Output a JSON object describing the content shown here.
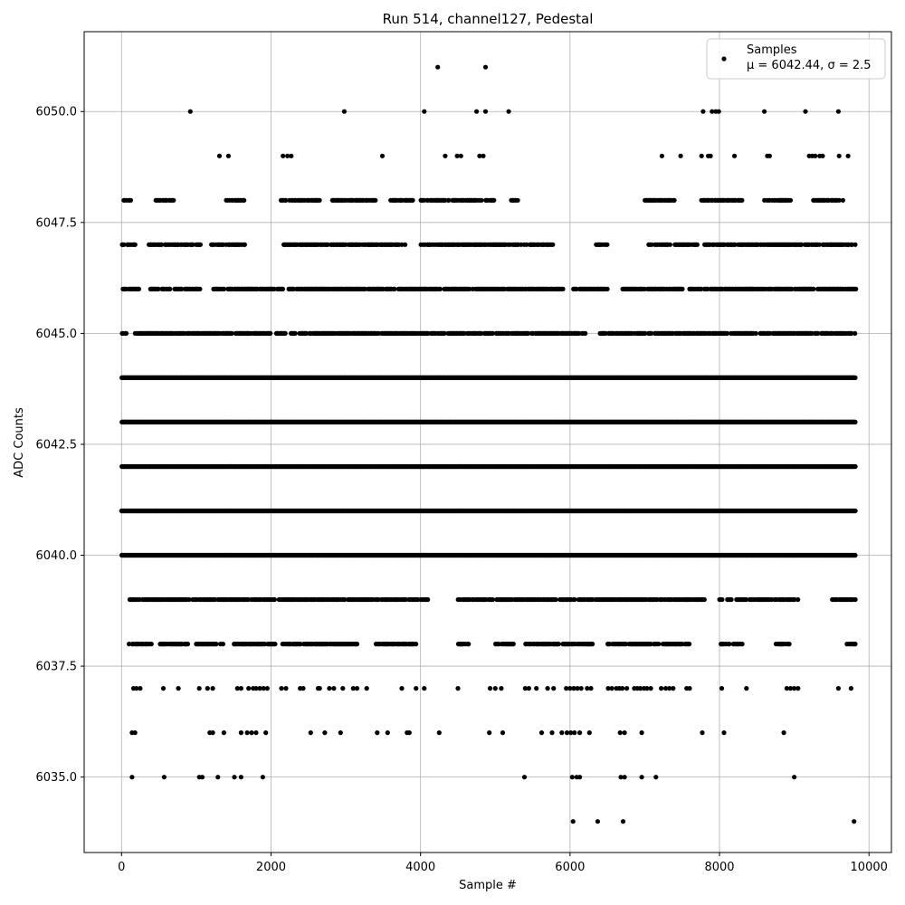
{
  "chart_data": {
    "type": "scatter",
    "title": "Run 514, channel127, Pedestal",
    "xlabel": "Sample #",
    "ylabel": "ADC Counts",
    "xlim": [
      -500,
      10300
    ],
    "ylim": [
      6033.3,
      6051.8
    ],
    "xticks": [
      0,
      2000,
      4000,
      6000,
      8000,
      10000
    ],
    "yticks": [
      6035.0,
      6037.5,
      6040.0,
      6042.5,
      6045.0,
      6047.5,
      6050.0
    ],
    "xtick_labels": [
      "0",
      "2000",
      "4000",
      "6000",
      "8000",
      "10000"
    ],
    "ytick_labels": [
      "6035.0",
      "6037.5",
      "6040.0",
      "6042.5",
      "6045.0",
      "6047.5",
      "6050.0"
    ],
    "grid": true,
    "legend_position": "top-right",
    "marker_color": "#000000",
    "series": [
      {
        "name": "Samples",
        "stats_label": "μ = 6042.44, σ = 2.5",
        "n_samples": 9820,
        "dense_levels": [
          {
            "y": 6040,
            "x": [
              0,
              9820
            ]
          },
          {
            "y": 6041,
            "x": [
              0,
              9820
            ]
          },
          {
            "y": 6042,
            "x": [
              0,
              9820
            ]
          },
          {
            "y": 6043,
            "x": [
              0,
              9820
            ]
          },
          {
            "y": 6044,
            "x": [
              0,
              9820
            ]
          }
        ],
        "clusters": [
          {
            "y": 6045,
            "x": [
              [
                0,
                60
              ],
              [
                180,
                2000
              ],
              [
                2050,
                6000
              ],
              [
                6000,
                6200
              ],
              [
                6400,
                9820
              ]
            ]
          },
          {
            "y": 6046,
            "x": [
              [
                0,
                250
              ],
              [
                380,
                1050
              ],
              [
                1200,
                2300
              ],
              [
                2300,
                3650
              ],
              [
                3700,
                5900
              ],
              [
                6000,
                6500
              ],
              [
                6700,
                7500
              ],
              [
                7600,
                8400
              ],
              [
                8400,
                9820
              ]
            ]
          },
          {
            "y": 6047,
            "x": [
              [
                0,
                200
              ],
              [
                350,
                1050
              ],
              [
                1200,
                1650
              ],
              [
                2150,
                3300
              ],
              [
                3300,
                3800
              ],
              [
                4000,
                5800
              ],
              [
                6350,
                6500
              ],
              [
                7050,
                7700
              ],
              [
                7800,
                8900
              ],
              [
                8900,
                9820
              ]
            ]
          },
          {
            "y": 6039,
            "x": [
              [
                100,
                900
              ],
              [
                950,
                2050
              ],
              [
                2100,
                4100
              ],
              [
                4500,
                5900
              ],
              [
                5900,
                7800
              ],
              [
                8000,
                8350
              ],
              [
                8400,
                9050
              ],
              [
                9500,
                9820
              ]
            ]
          },
          {
            "y": 6048,
            "x": [
              [
                20,
                120
              ],
              [
                450,
                700
              ],
              [
                1400,
                1650
              ],
              [
                2100,
                2650
              ],
              [
                2800,
                3400
              ],
              [
                3600,
                3900
              ],
              [
                4000,
                5000
              ],
              [
                5200,
                5300
              ],
              [
                7000,
                7400
              ],
              [
                7750,
                8300
              ],
              [
                8600,
                8950
              ],
              [
                9250,
                9650
              ]
            ]
          },
          {
            "y": 6038,
            "x": [
              [
                100,
                400
              ],
              [
                500,
                900
              ],
              [
                1000,
                1350
              ],
              [
                1500,
                2050
              ],
              [
                2150,
                3150
              ],
              [
                3400,
                3950
              ],
              [
                4500,
                4650
              ],
              [
                5000,
                5250
              ],
              [
                5400,
                6000
              ],
              [
                6000,
                6300
              ],
              [
                6500,
                7600
              ],
              [
                8000,
                8300
              ],
              [
                8750,
                8950
              ],
              [
                9700,
                9820
              ]
            ]
          }
        ],
        "points": [
          [
            920,
            6050
          ],
          [
            2980,
            6050
          ],
          [
            4050,
            6050
          ],
          [
            4750,
            6050
          ],
          [
            4870,
            6050
          ],
          [
            5180,
            6050
          ],
          [
            7780,
            6050
          ],
          [
            7900,
            6050
          ],
          [
            7950,
            6050
          ],
          [
            7990,
            6050
          ],
          [
            8600,
            6050
          ],
          [
            9150,
            6050
          ],
          [
            9590,
            6050
          ],
          [
            4230,
            6051
          ],
          [
            4870,
            6051
          ],
          [
            1310,
            6049
          ],
          [
            1430,
            6049
          ],
          [
            2160,
            6049
          ],
          [
            2220,
            6049
          ],
          [
            2270,
            6049
          ],
          [
            3490,
            6049
          ],
          [
            4330,
            6049
          ],
          [
            4490,
            6049
          ],
          [
            4540,
            6049
          ],
          [
            4790,
            6049
          ],
          [
            4840,
            6049
          ],
          [
            7230,
            6049
          ],
          [
            7480,
            6049
          ],
          [
            7760,
            6049
          ],
          [
            7850,
            6049
          ],
          [
            7880,
            6049
          ],
          [
            8200,
            6049
          ],
          [
            8640,
            6049
          ],
          [
            8670,
            6049
          ],
          [
            9200,
            6049
          ],
          [
            9240,
            6049
          ],
          [
            9280,
            6049
          ],
          [
            9340,
            6049
          ],
          [
            9380,
            6049
          ],
          [
            9600,
            6049
          ],
          [
            9720,
            6049
          ],
          [
            160,
            6037
          ],
          [
            200,
            6037
          ],
          [
            250,
            6037
          ],
          [
            560,
            6037
          ],
          [
            760,
            6037
          ],
          [
            1040,
            6037
          ],
          [
            1150,
            6037
          ],
          [
            1220,
            6037
          ],
          [
            1550,
            6037
          ],
          [
            1600,
            6037
          ],
          [
            1700,
            6037
          ],
          [
            1760,
            6037
          ],
          [
            1800,
            6037
          ],
          [
            1850,
            6037
          ],
          [
            1900,
            6037
          ],
          [
            1950,
            6037
          ],
          [
            2140,
            6037
          ],
          [
            2200,
            6037
          ],
          [
            2390,
            6037
          ],
          [
            2430,
            6037
          ],
          [
            2630,
            6037
          ],
          [
            2650,
            6037
          ],
          [
            2780,
            6037
          ],
          [
            2840,
            6037
          ],
          [
            2960,
            6037
          ],
          [
            3100,
            6037
          ],
          [
            3150,
            6037
          ],
          [
            3280,
            6037
          ],
          [
            3750,
            6037
          ],
          [
            3940,
            6037
          ],
          [
            4050,
            6037
          ],
          [
            4500,
            6037
          ],
          [
            4930,
            6037
          ],
          [
            5000,
            6037
          ],
          [
            5080,
            6037
          ],
          [
            5400,
            6037
          ],
          [
            5450,
            6037
          ],
          [
            5550,
            6037
          ],
          [
            5700,
            6037
          ],
          [
            5780,
            6037
          ],
          [
            5950,
            6037
          ],
          [
            6000,
            6037
          ],
          [
            6050,
            6037
          ],
          [
            6100,
            6037
          ],
          [
            6150,
            6037
          ],
          [
            6230,
            6037
          ],
          [
            6280,
            6037
          ],
          [
            6510,
            6037
          ],
          [
            6560,
            6037
          ],
          [
            6620,
            6037
          ],
          [
            6660,
            6037
          ],
          [
            6700,
            6037
          ],
          [
            6760,
            6037
          ],
          [
            6860,
            6037
          ],
          [
            6900,
            6037
          ],
          [
            6940,
            6037
          ],
          [
            6990,
            6037
          ],
          [
            7030,
            6037
          ],
          [
            7080,
            6037
          ],
          [
            7220,
            6037
          ],
          [
            7280,
            6037
          ],
          [
            7330,
            6037
          ],
          [
            7380,
            6037
          ],
          [
            7560,
            6037
          ],
          [
            7600,
            6037
          ],
          [
            8030,
            6037
          ],
          [
            8360,
            6037
          ],
          [
            8900,
            6037
          ],
          [
            8950,
            6037
          ],
          [
            9000,
            6037
          ],
          [
            9050,
            6037
          ],
          [
            9590,
            6037
          ],
          [
            9760,
            6037
          ],
          [
            140,
            6036
          ],
          [
            180,
            6036
          ],
          [
            1180,
            6036
          ],
          [
            1220,
            6036
          ],
          [
            1370,
            6036
          ],
          [
            1600,
            6036
          ],
          [
            1680,
            6036
          ],
          [
            1740,
            6036
          ],
          [
            1800,
            6036
          ],
          [
            1930,
            6036
          ],
          [
            2530,
            6036
          ],
          [
            2720,
            6036
          ],
          [
            2930,
            6036
          ],
          [
            3420,
            6036
          ],
          [
            3560,
            6036
          ],
          [
            3820,
            6036
          ],
          [
            3850,
            6036
          ],
          [
            4250,
            6036
          ],
          [
            4920,
            6036
          ],
          [
            5100,
            6036
          ],
          [
            5620,
            6036
          ],
          [
            5760,
            6036
          ],
          [
            5890,
            6036
          ],
          [
            5960,
            6036
          ],
          [
            6010,
            6036
          ],
          [
            6060,
            6036
          ],
          [
            6130,
            6036
          ],
          [
            6260,
            6036
          ],
          [
            6670,
            6036
          ],
          [
            6730,
            6036
          ],
          [
            6960,
            6036
          ],
          [
            7770,
            6036
          ],
          [
            8060,
            6036
          ],
          [
            8860,
            6036
          ],
          [
            140,
            6035
          ],
          [
            570,
            6035
          ],
          [
            1040,
            6035
          ],
          [
            1080,
            6035
          ],
          [
            1290,
            6035
          ],
          [
            1510,
            6035
          ],
          [
            1600,
            6035
          ],
          [
            1890,
            6035
          ],
          [
            5390,
            6035
          ],
          [
            6030,
            6035
          ],
          [
            6090,
            6035
          ],
          [
            6130,
            6035
          ],
          [
            6680,
            6035
          ],
          [
            6730,
            6035
          ],
          [
            6960,
            6035
          ],
          [
            7150,
            6035
          ],
          [
            9000,
            6035
          ],
          [
            6040,
            6034
          ],
          [
            6370,
            6034
          ],
          [
            6710,
            6034
          ],
          [
            9800,
            6034
          ]
        ]
      }
    ]
  }
}
